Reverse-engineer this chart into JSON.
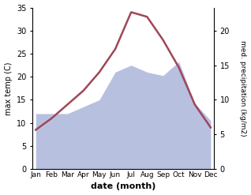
{
  "months": [
    "Jan",
    "Feb",
    "Mar",
    "Apr",
    "May",
    "Jun",
    "Jul",
    "Aug",
    "Sep",
    "Oct",
    "Nov",
    "Dec"
  ],
  "temperature": [
    8.5,
    11.0,
    14.0,
    17.0,
    21.0,
    26.0,
    34.0,
    33.0,
    28.0,
    22.0,
    14.0,
    9.0
  ],
  "precipitation": [
    8.0,
    8.0,
    8.0,
    9.0,
    10.0,
    14.0,
    15.0,
    14.0,
    13.5,
    15.5,
    9.5,
    7.0
  ],
  "temp_color": "#9e4757",
  "precip_fill_color": "#b8c0e0",
  "xlabel": "date (month)",
  "ylabel_left": "max temp (C)",
  "ylabel_right": "med. precipitation (kg/m2)",
  "ylim_left": [
    0,
    35
  ],
  "ylim_right": [
    0,
    23.33
  ],
  "yticks_left": [
    0,
    5,
    10,
    15,
    20,
    25,
    30,
    35
  ],
  "yticks_right": [
    0,
    5,
    10,
    15,
    20
  ],
  "bg_color": "#ffffff",
  "fig_width": 3.18,
  "fig_height": 2.47,
  "dpi": 100
}
